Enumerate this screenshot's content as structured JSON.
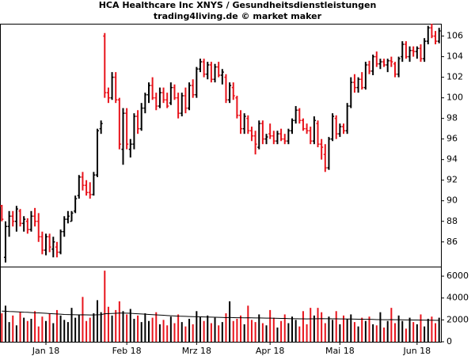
{
  "chart_data": {
    "type": "ohlc",
    "title": "HCA Healthcare Inc XNYS / Gesundheitsdienstleistungen",
    "subtitle": "trading4living.de © market maker",
    "categories": [
      null,
      null,
      null,
      null,
      null,
      null,
      null,
      null,
      null,
      null,
      null,
      null,
      "Jan 18",
      null,
      null,
      null,
      null,
      null,
      null,
      null,
      null,
      null,
      null,
      null,
      null,
      null,
      null,
      null,
      null,
      null,
      null,
      null,
      null,
      null,
      "Feb 18",
      null,
      null,
      null,
      null,
      null,
      null,
      null,
      null,
      null,
      null,
      null,
      null,
      null,
      null,
      null,
      null,
      null,
      null,
      "Mrz 18",
      null,
      null,
      null,
      null,
      null,
      null,
      null,
      null,
      null,
      null,
      null,
      null,
      null,
      null,
      null,
      null,
      null,
      null,
      null,
      "Apr 18",
      null,
      null,
      null,
      null,
      null,
      null,
      null,
      null,
      null,
      null,
      null,
      null,
      null,
      null,
      null,
      null,
      null,
      null,
      "Mai 18",
      null,
      null,
      null,
      null,
      null,
      null,
      null,
      null,
      null,
      null,
      null,
      null,
      null,
      null,
      null,
      null,
      null,
      null,
      null,
      null,
      "Jun 18",
      null,
      null,
      null,
      null,
      null,
      null
    ],
    "open": [
      89.5,
      84.5,
      87.5,
      88.5,
      88,
      89,
      87.8,
      88,
      87.2,
      88.5,
      88,
      86.5,
      85.2,
      86.5,
      85.3,
      85.5,
      85,
      87,
      88.2,
      88,
      89,
      90.5,
      92.3,
      91.5,
      90.8,
      90.6,
      92.5,
      97,
      106,
      100.5,
      100,
      102,
      99.8,
      95,
      98.5,
      95,
      95.5,
      98.2,
      97,
      99,
      100.3,
      101.2,
      100,
      99.2,
      100.5,
      99.8,
      99.5,
      101,
      100,
      98.5,
      100.2,
      99,
      101.2,
      100.3,
      102.8,
      103.5,
      102.3,
      103.2,
      101.8,
      103,
      102.2,
      102,
      99.8,
      101,
      100,
      98.3,
      97,
      98,
      96.8,
      96.3,
      95.2,
      97.5,
      96,
      96.5,
      96.3,
      95.8,
      96.5,
      96,
      95.8,
      96.8,
      97.8,
      98.8,
      97.8,
      97,
      96.8,
      95.8,
      97.5,
      95.5,
      94.5,
      93.2,
      96,
      98,
      96.5,
      97.2,
      96.8,
      99.2,
      101.5,
      101,
      101.8,
      101,
      103.2,
      102.6,
      104,
      103.3,
      103.5,
      103.2,
      103.6,
      103.3,
      102.3,
      104,
      105.2,
      104,
      104.6,
      104.5,
      104.8,
      103.8,
      105.5,
      106.8,
      106,
      105.5
    ],
    "high": [
      89.6,
      88,
      89,
      89,
      89.5,
      89.2,
      88.5,
      88.3,
      89,
      89.3,
      88.8,
      87,
      86.8,
      86.8,
      86.5,
      86,
      87.2,
      88.5,
      89,
      89,
      90.5,
      92.5,
      92.8,
      92,
      91.8,
      92.8,
      97,
      97.8,
      106.3,
      101,
      102.5,
      102.5,
      100,
      99,
      99,
      96,
      98.5,
      98.8,
      99.5,
      100.5,
      101.5,
      102,
      100.5,
      101,
      101,
      100.5,
      101.5,
      101.3,
      100.5,
      100.5,
      101,
      101.5,
      101.8,
      103,
      103.8,
      103.8,
      103.5,
      103.5,
      103.3,
      103.5,
      102.8,
      102.3,
      101.5,
      101.5,
      100.2,
      98.8,
      98.5,
      98.3,
      97.2,
      96.8,
      97.8,
      97.8,
      96.5,
      97.5,
      96.8,
      96.8,
      97,
      96.5,
      97,
      98,
      99.2,
      99,
      98,
      97.5,
      97.2,
      98.2,
      97.8,
      96,
      95.5,
      96.2,
      98.5,
      98.3,
      97.5,
      97.5,
      99.5,
      102,
      102.3,
      102,
      102.5,
      103.5,
      103.6,
      104.2,
      104.5,
      103.8,
      103.8,
      103.8,
      104,
      103.5,
      104,
      105.5,
      105.5,
      105,
      105,
      105,
      105.2,
      105.8,
      107,
      107.2,
      106.5,
      106.8
    ],
    "low": [
      88,
      84,
      86.5,
      87.5,
      87,
      87.5,
      87,
      86.8,
      87,
      87.5,
      86,
      84.8,
      84.7,
      85,
      84.5,
      84.5,
      84.8,
      86.5,
      87.8,
      88,
      88.8,
      90.2,
      91,
      90.5,
      90.2,
      90.5,
      92.3,
      96.5,
      100,
      99.5,
      99.8,
      99.5,
      95,
      93.5,
      95,
      94.2,
      95,
      96.5,
      96.8,
      98.5,
      99.5,
      99.8,
      98.8,
      99,
      99.5,
      99,
      99.3,
      99.8,
      98,
      98.2,
      98.5,
      98.8,
      100,
      100,
      102.5,
      102,
      101.8,
      101.5,
      101.5,
      102,
      101.3,
      99.5,
      99.5,
      99.8,
      98,
      96.5,
      96.5,
      96.5,
      95.8,
      94.5,
      95,
      95.5,
      95.5,
      96,
      95.5,
      95.5,
      95.8,
      95.5,
      95.5,
      96.5,
      97.5,
      97.5,
      96.8,
      96.5,
      95.5,
      95.5,
      95.2,
      94,
      92.8,
      93,
      95.8,
      96,
      96.2,
      96.5,
      96.5,
      99,
      100.5,
      100.5,
      100.8,
      100.8,
      102.3,
      102.2,
      103,
      102.8,
      103,
      102.5,
      103,
      102,
      102,
      103.5,
      103.8,
      103.5,
      104,
      103.8,
      103.5,
      103.5,
      105.2,
      105.8,
      105.2,
      105.3
    ],
    "close": [
      88.2,
      87.5,
      88.5,
      88,
      89.2,
      87.8,
      88.2,
      87.2,
      88.5,
      88,
      86.5,
      85.2,
      86.5,
      85.5,
      86,
      85,
      87,
      88.2,
      88.5,
      88.8,
      90.2,
      92.3,
      91.5,
      90.8,
      90.6,
      92.5,
      96.8,
      97.5,
      100.5,
      100,
      102,
      99.8,
      95.5,
      98.5,
      95.5,
      95.5,
      98.2,
      97,
      99,
      100.3,
      101.2,
      100,
      99.2,
      100.5,
      99.8,
      99.2,
      101,
      100,
      98.5,
      100.2,
      99,
      101.2,
      100.3,
      102.8,
      103.5,
      102.3,
      103.2,
      101.8,
      103,
      102.2,
      102.5,
      99.8,
      101.2,
      100.2,
      98.3,
      97,
      98.2,
      96.8,
      96.3,
      95.5,
      97.5,
      96,
      96.2,
      96.3,
      95.8,
      96.5,
      96,
      95.8,
      96.8,
      97.8,
      98.8,
      97.8,
      97,
      96.8,
      95.8,
      97.8,
      95.5,
      95.2,
      93.2,
      96,
      98.2,
      96.5,
      97.2,
      96.8,
      99.2,
      101.5,
      101,
      101.8,
      101,
      103.2,
      102.6,
      104,
      103.3,
      103.5,
      103.2,
      103.6,
      103.5,
      102.3,
      103.8,
      105.2,
      104,
      104.6,
      104.5,
      104.8,
      103.8,
      105.5,
      106.8,
      106,
      105.5,
      106.5
    ],
    "volume": [
      2600,
      3300,
      1800,
      2400,
      1500,
      2700,
      2200,
      1900,
      2100,
      2800,
      1400,
      2300,
      1900,
      2600,
      1700,
      2900,
      2400,
      2000,
      1800,
      3100,
      2200,
      2500,
      4100,
      1900,
      2200,
      2600,
      3800,
      2700,
      6500,
      3200,
      2400,
      2900,
      3700,
      2800,
      2500,
      3000,
      2100,
      2400,
      1800,
      2600,
      1900,
      2200,
      2700,
      1600,
      2000,
      1500,
      2300,
      1700,
      2500,
      1800,
      1400,
      2100,
      1600,
      2800,
      2300,
      1900,
      2400,
      1700,
      2200,
      1500,
      1800,
      2600,
      3700,
      1900,
      2100,
      2400,
      1600,
      3300,
      2000,
      1800,
      2500,
      1700,
      1500,
      2900,
      2200,
      1300,
      1900,
      2500,
      1700,
      2300,
      2000,
      1400,
      2800,
      1600,
      3100,
      2400,
      3100,
      2700,
      1700,
      2300,
      2000,
      2800,
      1600,
      2400,
      2100,
      2500,
      1800,
      1400,
      2200,
      1900,
      2300,
      1600,
      1500,
      2700,
      1300,
      1900,
      3100,
      1700,
      2400,
      1900,
      1200,
      2200,
      1800,
      1600,
      2500,
      1400,
      2100,
      2300,
      1700,
      2200
    ],
    "volume_ma": [
      2800,
      2790,
      2770,
      2760,
      2740,
      2720,
      2700,
      2690,
      2670,
      2650,
      2640,
      2620,
      2600,
      2580,
      2560,
      2540,
      2520,
      2500,
      2490,
      2480,
      2470,
      2460,
      2470,
      2460,
      2450,
      2450,
      2470,
      2480,
      2560,
      2580,
      2590,
      2600,
      2620,
      2620,
      2610,
      2600,
      2580,
      2560,
      2540,
      2520,
      2500,
      2480,
      2460,
      2440,
      2420,
      2400,
      2380,
      2360,
      2340,
      2330,
      2320,
      2310,
      2300,
      2290,
      2280,
      2270,
      2260,
      2250,
      2240,
      2230,
      2220,
      2210,
      2220,
      2210,
      2200,
      2200,
      2190,
      2200,
      2190,
      2180,
      2180,
      2170,
      2160,
      2160,
      2150,
      2140,
      2130,
      2130,
      2120,
      2110,
      2110,
      2100,
      2100,
      2090,
      2100,
      2100,
      2110,
      2120,
      2110,
      2110,
      2100,
      2100,
      2090,
      2090,
      2080,
      2080,
      2070,
      2060,
      2060,
      2050,
      2050,
      2040,
      2030,
      2030,
      2020,
      2020,
      2030,
      2020,
      2020,
      2010,
      2000,
      2000,
      1990,
      1990,
      1980,
      1980,
      1970,
      1970,
      1960,
      1960
    ],
    "up_color": "#000000",
    "down_color": "#e8141c",
    "ma_color": "#000000",
    "ylim": [
      83.6,
      107.2
    ],
    "yticks": [
      86,
      88,
      90,
      92,
      94,
      96,
      98,
      100,
      102,
      104,
      106
    ],
    "volume_ylim": [
      0,
      6800
    ],
    "volume_yticks": [
      0,
      2000,
      4000,
      6000
    ]
  }
}
